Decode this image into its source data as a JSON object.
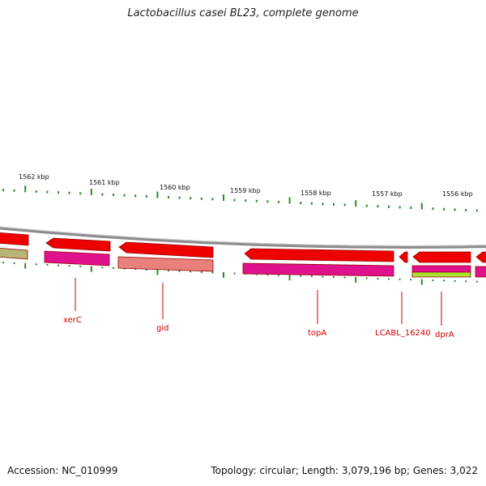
{
  "title": "Lactobacillus casei BL23, complete genome",
  "footer": {
    "accession": "Accession: NC_010999",
    "summary": "Topology: circular; Length: 3,079,196 bp; Genes: 3,022"
  },
  "colors": {
    "backbone": "#8c8c8c",
    "gene_forward": "#ee0000",
    "gene_dark": "#990000",
    "cds_track": "#e0118c",
    "rna_track": "#e8807c",
    "olive_track": "#b5b574",
    "lime_track": "#a6e22e",
    "tick": "#2a8a2a",
    "label": "#cc0000"
  },
  "scale": {
    "ticks": [
      "1562 kbp",
      "1561 kbp",
      "1560 kbp",
      "1559 kbp",
      "1558 kbp",
      "1557 kbp",
      "1556 kbp"
    ]
  },
  "genes": [
    {
      "name": "xerC"
    },
    {
      "name": "gid"
    },
    {
      "name": "topA"
    },
    {
      "name": "LCABL_16240"
    },
    {
      "name": "dprA"
    }
  ]
}
